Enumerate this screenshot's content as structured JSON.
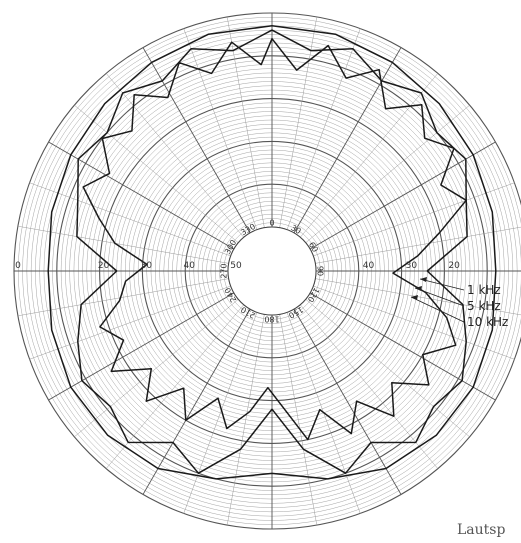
{
  "chart_data": {
    "type": "polar",
    "radial_axis": {
      "range": [
        0,
        50
      ],
      "direction": "center-is-max",
      "tick_labels_left": [
        "50",
        "40",
        "30",
        "20",
        "0"
      ],
      "tick_labels_right": [
        "0",
        "20",
        "30",
        "40"
      ]
    },
    "angular_axis": {
      "labels": [
        "0",
        "30",
        "60",
        "90",
        "120",
        "150",
        "180",
        "210",
        "240",
        "270",
        "300",
        "330"
      ],
      "direction": "clockwise",
      "zero": "top"
    },
    "grid": true,
    "legend": {
      "placement": "right",
      "entries": [
        "1 kHz",
        "5 kHz",
        "10 kHz"
      ]
    },
    "series": [
      {
        "angles": [
          0,
          15,
          30,
          45,
          60,
          75,
          90,
          105,
          120,
          135,
          150,
          165,
          180,
          195,
          210,
          225,
          240,
          255,
          270,
          285,
          300,
          315,
          330,
          345
        ],
        "values": [
          3,
          3,
          4,
          5,
          6,
          7,
          8,
          7,
          6,
          6,
          7,
          10,
          13,
          10,
          7,
          6,
          6,
          7,
          8,
          7,
          6,
          5,
          4,
          3
        ]
      },
      {
        "angles": [
          0,
          10,
          20,
          30,
          40,
          50,
          60,
          70,
          80,
          90,
          100,
          110,
          120,
          130,
          140,
          150,
          160,
          170,
          180,
          190,
          200,
          210,
          220,
          230,
          240,
          250,
          260,
          270,
          280,
          290,
          300,
          310,
          320,
          330,
          340,
          350
        ],
        "values": [
          4,
          8,
          5,
          9,
          6,
          10,
          8,
          12,
          14,
          24,
          15,
          12,
          9,
          11,
          8,
          14,
          10,
          18,
          28,
          18,
          10,
          14,
          8,
          11,
          9,
          12,
          15,
          24,
          14,
          12,
          8,
          10,
          6,
          9,
          5,
          8
        ]
      },
      {
        "angles": [
          0,
          7,
          14,
          21,
          28,
          35,
          42,
          49,
          56,
          63,
          70,
          77,
          84,
          91,
          98,
          105,
          112,
          119,
          126,
          133,
          140,
          147,
          154,
          161,
          168,
          175,
          182,
          189,
          196,
          203,
          210,
          217,
          224,
          231,
          238,
          245,
          252,
          259,
          266,
          273,
          280,
          287,
          294,
          301,
          308,
          315,
          322,
          329,
          336,
          343,
          350,
          357
        ],
        "values": [
          6,
          13,
          6,
          12,
          7,
          14,
          8,
          13,
          9,
          16,
          12,
          20,
          26,
          32,
          24,
          18,
          14,
          20,
          15,
          22,
          16,
          24,
          18,
          26,
          20,
          28,
          33,
          27,
          22,
          28,
          20,
          26,
          18,
          24,
          16,
          22,
          18,
          24,
          26,
          31,
          23,
          18,
          12,
          16,
          10,
          14,
          8,
          13,
          7,
          12,
          6,
          12
        ]
      }
    ]
  },
  "caption": "Lautsp"
}
